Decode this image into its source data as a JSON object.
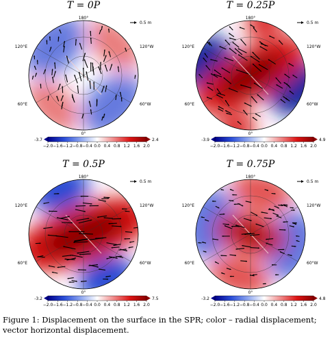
{
  "figure": {
    "caption": "Figure 1: Displacement on the surface in the SPR; color – radial displacement; vector horizontal displacement.",
    "colormap": [
      "#00008b",
      "#2b4ed8",
      "#8ea6f0",
      "#ffffff",
      "#f08a8a",
      "#dc1414",
      "#8b0000"
    ],
    "colorbar_ticks": [
      "−2.0",
      "−1.6",
      "−1.2",
      "−0.8",
      "−0.4",
      "0.0",
      "0.4",
      "0.8",
      "1.2",
      "1.6",
      "2.0"
    ],
    "map_labels": {
      "top": "180°",
      "bottom": "0°",
      "upper_left": "120°E",
      "upper_right": "120°W",
      "lower_left": "60°E",
      "lower_right": "60°W"
    },
    "quiver_key": "0.5 m"
  },
  "panels": [
    {
      "title": "T = 0P",
      "cbar_min": "-3.7",
      "cbar_max": "2.4",
      "pattern": "quad",
      "angle": 45,
      "blueFrac": 0.55,
      "redFrac": 0.45,
      "intensity": 0.9
    },
    {
      "title": "T = 0.25P",
      "cbar_min": "-3.9",
      "cbar_max": "4.9",
      "pattern": "bandPlusBlue",
      "angle": -30,
      "blueFrac": 0.9,
      "redFrac": 1.0,
      "intensity": 1.0
    },
    {
      "title": "T = 0.5P",
      "cbar_min": "-3.2",
      "cbar_max": "7.5",
      "pattern": "band",
      "angle": -20,
      "blueFrac": 0.8,
      "redFrac": 1.0,
      "intensity": 1.0
    },
    {
      "title": "T = 0.75P",
      "cbar_min": "-3.2",
      "cbar_max": "4.8",
      "pattern": "quadSoft",
      "angle": 15,
      "blueFrac": 0.7,
      "redFrac": 0.8,
      "intensity": 0.75
    }
  ]
}
